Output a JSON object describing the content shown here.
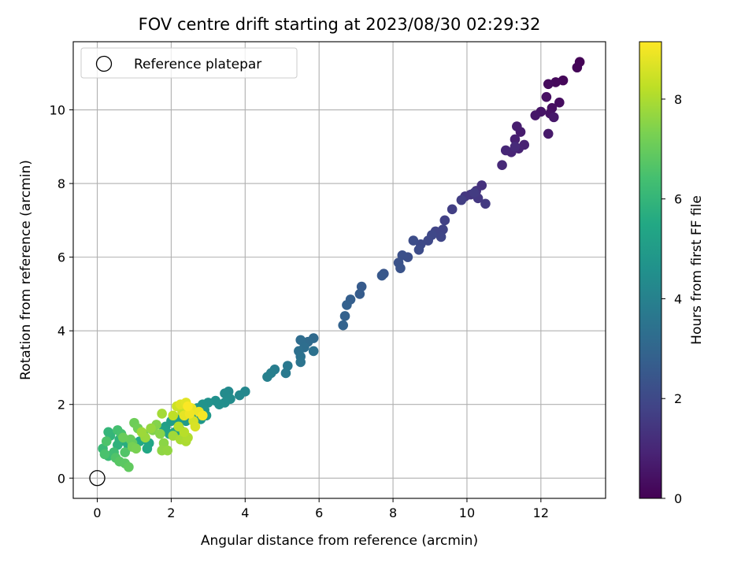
{
  "chart_data": {
    "type": "scatter",
    "title": "FOV centre drift starting at 2023/08/30 02:29:32",
    "xlabel": "Angular distance from reference (arcmin)",
    "ylabel": "Rotation from reference (arcmin)",
    "xlim": [
      -0.65,
      13.75
    ],
    "ylim": [
      -0.55,
      11.85
    ],
    "xticks": [
      0,
      2,
      4,
      6,
      8,
      10,
      12
    ],
    "yticks": [
      0,
      2,
      4,
      6,
      8,
      10
    ],
    "grid": true,
    "legend": {
      "position": "top-left",
      "entries": [
        "Reference platepar"
      ]
    },
    "reference_point": {
      "x": 0,
      "y": 0
    },
    "colorbar": {
      "label": "Hours from first FF file",
      "range": [
        0,
        9.15
      ],
      "ticks": [
        0,
        2,
        4,
        6,
        8
      ],
      "colormap": "viridis"
    },
    "series": [
      {
        "name": "FOV centre drift",
        "points": [
          [
            13.05,
            11.3,
            0.05
          ],
          [
            12.98,
            11.15,
            0.1
          ],
          [
            12.6,
            10.8,
            0.15
          ],
          [
            12.4,
            10.75,
            0.2
          ],
          [
            12.2,
            10.7,
            0.25
          ],
          [
            12.5,
            10.2,
            0.3
          ],
          [
            12.3,
            10.05,
            0.35
          ],
          [
            12.15,
            10.35,
            0.4
          ],
          [
            12.25,
            9.9,
            0.45
          ],
          [
            12.0,
            9.95,
            0.5
          ],
          [
            11.85,
            9.85,
            0.55
          ],
          [
            12.35,
            9.8,
            0.6
          ],
          [
            12.2,
            9.35,
            0.65
          ],
          [
            11.45,
            9.4,
            0.7
          ],
          [
            11.35,
            9.55,
            0.75
          ],
          [
            11.3,
            9.2,
            0.8
          ],
          [
            11.55,
            9.05,
            0.85
          ],
          [
            11.4,
            8.95,
            0.9
          ],
          [
            11.2,
            8.85,
            0.95
          ],
          [
            11.05,
            8.9,
            1.0
          ],
          [
            10.95,
            8.5,
            1.05
          ],
          [
            11.3,
            9.0,
            1.1
          ],
          [
            10.4,
            7.95,
            1.3
          ],
          [
            10.25,
            7.8,
            1.35
          ],
          [
            10.1,
            7.7,
            1.4
          ],
          [
            9.95,
            7.65,
            1.45
          ],
          [
            10.3,
            7.6,
            1.5
          ],
          [
            10.5,
            7.45,
            1.55
          ],
          [
            10.2,
            7.75,
            1.6
          ],
          [
            9.85,
            7.55,
            1.65
          ],
          [
            9.6,
            7.3,
            1.7
          ],
          [
            9.4,
            7.0,
            1.75
          ],
          [
            9.35,
            6.75,
            1.8
          ],
          [
            9.15,
            6.7,
            1.85
          ],
          [
            9.3,
            6.55,
            1.9
          ],
          [
            9.05,
            6.6,
            1.95
          ],
          [
            8.95,
            6.45,
            2.0
          ],
          [
            8.75,
            6.35,
            2.05
          ],
          [
            8.7,
            6.2,
            2.1
          ],
          [
            8.55,
            6.45,
            2.15
          ],
          [
            8.4,
            6.0,
            2.2
          ],
          [
            8.25,
            6.05,
            2.25
          ],
          [
            8.15,
            5.85,
            2.3
          ],
          [
            8.2,
            5.7,
            2.35
          ],
          [
            7.75,
            5.55,
            2.45
          ],
          [
            7.7,
            5.5,
            2.5
          ],
          [
            7.15,
            5.2,
            2.6
          ],
          [
            7.1,
            5.0,
            2.65
          ],
          [
            6.85,
            4.85,
            2.75
          ],
          [
            6.75,
            4.7,
            2.8
          ],
          [
            6.7,
            4.4,
            2.85
          ],
          [
            6.65,
            4.15,
            2.9
          ],
          [
            5.85,
            3.8,
            3.15
          ],
          [
            5.7,
            3.7,
            3.2
          ],
          [
            5.5,
            3.75,
            3.25
          ],
          [
            5.6,
            3.55,
            3.3
          ],
          [
            5.45,
            3.45,
            3.35
          ],
          [
            5.85,
            3.45,
            3.4
          ],
          [
            5.5,
            3.3,
            3.45
          ],
          [
            5.5,
            3.15,
            3.5
          ],
          [
            5.15,
            3.05,
            3.65
          ],
          [
            5.1,
            2.85,
            3.7
          ],
          [
            4.8,
            2.95,
            3.85
          ],
          [
            4.7,
            2.85,
            3.9
          ],
          [
            4.6,
            2.75,
            3.95
          ],
          [
            4.0,
            2.35,
            4.2
          ],
          [
            3.85,
            2.25,
            4.25
          ],
          [
            3.55,
            2.35,
            4.3
          ],
          [
            3.45,
            2.3,
            4.35
          ],
          [
            3.6,
            2.15,
            4.4
          ],
          [
            3.45,
            2.05,
            4.45
          ],
          [
            3.3,
            2.0,
            4.5
          ],
          [
            3.2,
            2.1,
            4.55
          ],
          [
            3.0,
            2.05,
            4.6
          ],
          [
            2.85,
            2.0,
            4.65
          ],
          [
            2.9,
            1.85,
            4.7
          ],
          [
            2.7,
            1.9,
            4.75
          ],
          [
            2.95,
            1.7,
            4.8
          ],
          [
            2.8,
            1.6,
            4.85
          ],
          [
            2.55,
            1.7,
            4.9
          ],
          [
            2.4,
            1.55,
            4.95
          ],
          [
            2.2,
            1.6,
            5.0
          ],
          [
            2.0,
            1.55,
            5.05
          ],
          [
            1.85,
            1.4,
            5.1
          ],
          [
            2.25,
            1.3,
            5.15
          ],
          [
            1.8,
            1.3,
            5.2
          ],
          [
            2.1,
            1.25,
            5.25
          ],
          [
            1.95,
            1.2,
            5.3
          ],
          [
            1.4,
            0.95,
            5.4
          ],
          [
            1.35,
            0.8,
            5.45
          ],
          [
            1.15,
            1.0,
            5.5
          ],
          [
            1.0,
            0.95,
            5.55
          ],
          [
            0.85,
            0.85,
            5.6
          ],
          [
            0.75,
            1.0,
            5.7
          ],
          [
            0.6,
            1.05,
            5.8
          ],
          [
            0.55,
            0.9,
            5.85
          ],
          [
            0.35,
            1.15,
            5.95
          ],
          [
            0.3,
            1.25,
            6.0
          ],
          [
            0.15,
            0.8,
            6.15
          ],
          [
            0.3,
            0.6,
            6.2
          ],
          [
            0.45,
            0.7,
            6.3
          ],
          [
            0.55,
            1.3,
            6.4
          ],
          [
            0.65,
            1.2,
            6.45
          ],
          [
            0.2,
            0.65,
            6.5
          ],
          [
            0.25,
            1.0,
            6.55
          ],
          [
            0.5,
            0.55,
            6.6
          ],
          [
            0.75,
            0.7,
            6.65
          ],
          [
            0.6,
            0.45,
            6.75
          ],
          [
            0.75,
            0.4,
            6.8
          ],
          [
            0.85,
            0.3,
            6.9
          ],
          [
            0.95,
            0.95,
            6.95
          ],
          [
            0.9,
            1.05,
            7.0
          ],
          [
            0.7,
            1.1,
            7.05
          ],
          [
            1.0,
            1.5,
            7.1
          ],
          [
            1.1,
            1.35,
            7.15
          ],
          [
            1.25,
            1.2,
            7.2
          ],
          [
            0.95,
            0.85,
            7.25
          ],
          [
            1.05,
            0.8,
            7.3
          ],
          [
            1.5,
            1.3,
            7.4
          ],
          [
            1.6,
            1.45,
            7.45
          ],
          [
            1.7,
            1.2,
            7.5
          ],
          [
            1.8,
            0.95,
            7.55
          ],
          [
            1.75,
            0.75,
            7.6
          ],
          [
            1.9,
            0.75,
            7.65
          ],
          [
            1.45,
            1.35,
            7.7
          ],
          [
            1.3,
            1.1,
            7.75
          ],
          [
            1.2,
            1.25,
            7.8
          ],
          [
            2.05,
            1.15,
            7.85
          ],
          [
            1.75,
            1.75,
            7.9
          ],
          [
            2.25,
            1.05,
            7.95
          ],
          [
            2.4,
            1.0,
            8.0
          ],
          [
            2.45,
            1.1,
            8.05
          ],
          [
            2.2,
            1.4,
            8.1
          ],
          [
            2.35,
            1.25,
            8.15
          ],
          [
            2.05,
            1.7,
            8.25
          ],
          [
            2.3,
            1.8,
            8.35
          ],
          [
            2.15,
            1.95,
            8.45
          ],
          [
            2.5,
            1.85,
            8.5
          ],
          [
            2.6,
            1.55,
            8.55
          ],
          [
            2.65,
            1.4,
            8.6
          ],
          [
            2.25,
            2.0,
            8.7
          ],
          [
            2.4,
            2.05,
            8.75
          ],
          [
            2.35,
            1.7,
            8.8
          ],
          [
            2.55,
            1.9,
            8.85
          ],
          [
            2.75,
            1.8,
            8.9
          ],
          [
            2.5,
            1.75,
            8.95
          ],
          [
            2.85,
            1.7,
            9.05
          ],
          [
            2.45,
            1.95,
            9.1
          ]
        ]
      }
    ]
  }
}
